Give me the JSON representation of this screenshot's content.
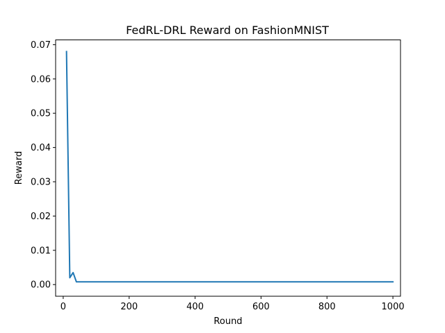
{
  "chart_data": {
    "type": "line",
    "title": "FedRL-DRL Reward on FashionMNIST",
    "xlabel": "Round",
    "ylabel": "Reward",
    "xlim": [
      -23,
      1023
    ],
    "ylim": [
      -0.0034,
      0.0714
    ],
    "grid": false,
    "xticks": [
      0,
      200,
      400,
      600,
      800,
      1000
    ],
    "xtick_labels": [
      "0",
      "200",
      "400",
      "600",
      "800",
      "1000"
    ],
    "yticks": [
      0.0,
      0.01,
      0.02,
      0.03,
      0.04,
      0.05,
      0.06,
      0.07
    ],
    "ytick_labels": [
      "0.00",
      "0.01",
      "0.02",
      "0.03",
      "0.04",
      "0.05",
      "0.06",
      "0.07"
    ],
    "series": [
      {
        "color": "#1f77b4",
        "x": [
          10,
          20,
          30,
          40,
          50,
          60,
          70,
          80,
          90,
          100,
          200,
          300,
          400,
          500,
          600,
          700,
          800,
          900,
          1000
        ],
        "y": [
          0.068,
          0.002,
          0.0035,
          0.0008,
          0.0008,
          0.0008,
          0.0008,
          0.0008,
          0.0008,
          0.0008,
          0.0008,
          0.0008,
          0.0008,
          0.0008,
          0.0008,
          0.0008,
          0.0008,
          0.0008,
          0.0008
        ]
      }
    ]
  }
}
